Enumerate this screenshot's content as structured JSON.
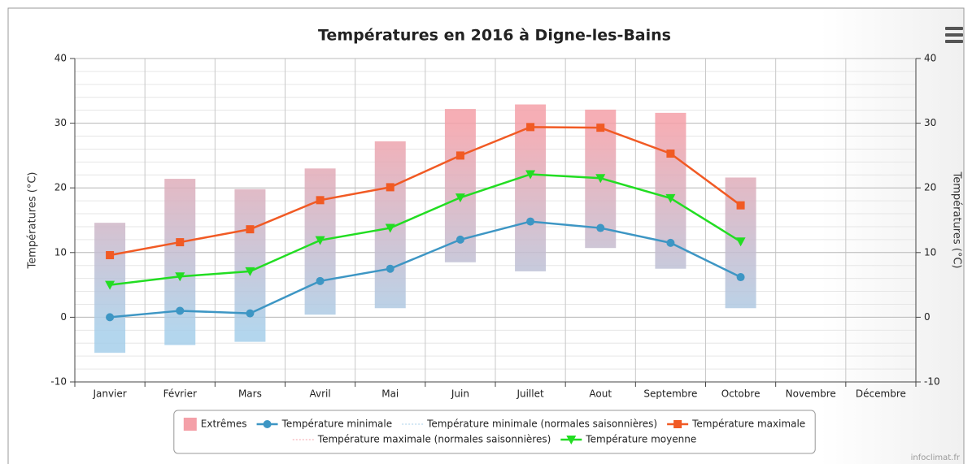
{
  "chart_data": {
    "type": "line",
    "title": "Températures en 2016 à Digne-les-Bains",
    "y_label": "Températures (°C)",
    "y2_label": "Températures (°C)",
    "credit": "infoclimat.fr",
    "categories": [
      "Janvier",
      "Février",
      "Mars",
      "Avril",
      "Mai",
      "Juin",
      "Juillet",
      "Aout",
      "Septembre",
      "Octobre",
      "Novembre",
      "Décembre"
    ],
    "ylim": [
      -10,
      40
    ],
    "yticks": [
      -10,
      0,
      10,
      20,
      30,
      40
    ],
    "y2lim": [
      -10,
      40
    ],
    "y2ticks": [
      -10,
      0,
      10,
      20,
      30,
      40
    ],
    "grid": true,
    "minor_grid_step": 2,
    "legend": "bottom",
    "series": [
      {
        "name": "Extrêmes",
        "type": "columnrange",
        "color": "#f4a0a8",
        "color_low": "#a6cfea",
        "values": [
          [
            -5.5,
            14.6
          ],
          [
            -4.3,
            21.4
          ],
          [
            -3.8,
            19.8
          ],
          [
            0.4,
            23
          ],
          [
            1.4,
            27.2
          ],
          [
            8.5,
            32.2
          ],
          [
            7.1,
            32.9
          ],
          [
            10.7,
            32.1
          ],
          [
            7.5,
            31.6
          ],
          [
            1.4,
            21.6
          ],
          null,
          null
        ]
      },
      {
        "name": "Température minimale",
        "color": "#3d96c4",
        "marker": "circle",
        "values": [
          0,
          1,
          0.6,
          5.6,
          7.5,
          12,
          14.8,
          13.8,
          11.5,
          6.2,
          null,
          null
        ]
      },
      {
        "name": "Température minimale (normales saisonnières)",
        "color": "#a6cfea",
        "dash": true,
        "values": [
          null,
          null,
          null,
          null,
          null,
          null,
          null,
          null,
          null,
          null,
          null,
          null
        ]
      },
      {
        "name": "Température maximale",
        "color": "#f15a24",
        "marker": "square",
        "values": [
          9.6,
          11.6,
          13.6,
          18.1,
          20.1,
          25,
          29.4,
          29.3,
          25.3,
          17.3,
          null,
          null
        ]
      },
      {
        "name": "Température maximale (normales saisonnières)",
        "color": "#f4a0a8",
        "dash": true,
        "values": [
          null,
          null,
          null,
          null,
          null,
          null,
          null,
          null,
          null,
          null,
          null,
          null
        ]
      },
      {
        "name": "Température moyenne",
        "color": "#22dd22",
        "marker": "triangle-down",
        "values": [
          5,
          6.3,
          7.1,
          11.9,
          13.8,
          18.5,
          22.1,
          21.5,
          18.4,
          11.7,
          null,
          null
        ]
      }
    ]
  }
}
